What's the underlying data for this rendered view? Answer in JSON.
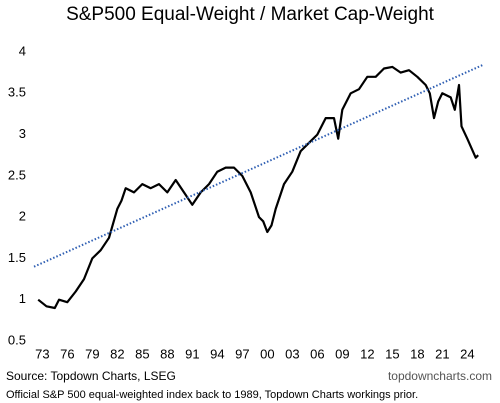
{
  "chart_data": {
    "type": "line",
    "title": "S&P500 Equal-Weight / Market Cap-Weight",
    "source": "Source: Topdown Charts, LSEG",
    "website": "topdowncharts.com",
    "footnote": "Official S&P 500 equal-weighted index back to 1989, Topdown Charts workings prior.",
    "xlim": [
      1972,
      2026
    ],
    "xticks": [
      {
        "value": 1973,
        "label": "73"
      },
      {
        "value": 1976,
        "label": "76"
      },
      {
        "value": 1979,
        "label": "79"
      },
      {
        "value": 1982,
        "label": "82"
      },
      {
        "value": 1985,
        "label": "85"
      },
      {
        "value": 1988,
        "label": "88"
      },
      {
        "value": 1991,
        "label": "91"
      },
      {
        "value": 1994,
        "label": "94"
      },
      {
        "value": 1997,
        "label": "97"
      },
      {
        "value": 2000,
        "label": "00"
      },
      {
        "value": 2003,
        "label": "03"
      },
      {
        "value": 2006,
        "label": "06"
      },
      {
        "value": 2009,
        "label": "09"
      },
      {
        "value": 2012,
        "label": "12"
      },
      {
        "value": 2015,
        "label": "15"
      },
      {
        "value": 2018,
        "label": "18"
      },
      {
        "value": 2021,
        "label": "21"
      },
      {
        "value": 2024,
        "label": "24"
      }
    ],
    "ylim": [
      0.5,
      4
    ],
    "yticks": [
      0.5,
      1,
      1.5,
      2,
      2.5,
      3,
      3.5,
      4
    ],
    "series": [
      {
        "color": "#000000",
        "style": "solid",
        "x": [
          1972.5,
          1973.5,
          1974.5,
          1975,
          1976,
          1977,
          1978,
          1979,
          1980,
          1981,
          1982,
          1982.5,
          1983,
          1984,
          1985,
          1986,
          1987,
          1988,
          1989,
          1990,
          1991,
          1992,
          1993,
          1994,
          1995,
          1996,
          1997,
          1998,
          1999,
          1999.5,
          2000,
          2000.5,
          2001,
          2002,
          2003,
          2004,
          2005,
          2006,
          2007,
          2008,
          2008.5,
          2009,
          2010,
          2011,
          2012,
          2013,
          2014,
          2015,
          2016,
          2017,
          2018,
          2019,
          2019.5,
          2020,
          2020.5,
          2021,
          2022,
          2022.5,
          2023,
          2023.3,
          2024,
          2025,
          2025.3
        ],
        "values": [
          1.0,
          0.92,
          0.9,
          1.0,
          0.97,
          1.1,
          1.25,
          1.5,
          1.6,
          1.75,
          2.1,
          2.2,
          2.35,
          2.3,
          2.4,
          2.35,
          2.4,
          2.3,
          2.45,
          2.3,
          2.15,
          2.3,
          2.4,
          2.55,
          2.6,
          2.6,
          2.5,
          2.3,
          2.0,
          1.95,
          1.82,
          1.9,
          2.1,
          2.4,
          2.55,
          2.8,
          2.9,
          3.0,
          3.2,
          3.2,
          2.95,
          3.3,
          3.5,
          3.55,
          3.7,
          3.7,
          3.8,
          3.82,
          3.75,
          3.78,
          3.7,
          3.6,
          3.5,
          3.2,
          3.4,
          3.5,
          3.45,
          3.3,
          3.6,
          3.1,
          2.95,
          2.72,
          2.75
        ]
      },
      {
        "color": "#2f5fb3",
        "style": "dotted",
        "x": [
          1972,
          2026
        ],
        "values": [
          1.4,
          3.85
        ]
      }
    ]
  }
}
